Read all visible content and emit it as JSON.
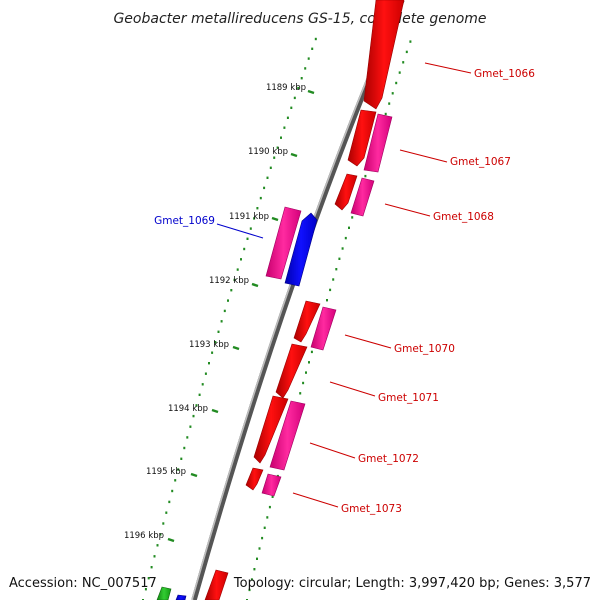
{
  "title": "Geobacter metallireducens GS-15, complete genome",
  "footer": {
    "accession": "Accession: NC_007517",
    "summary": "Topology: circular; Length: 3,997,420 bp; Genes: 3,577"
  },
  "colors": {
    "forward_cds": "#ff0000",
    "reverse_cds": "#0000ff",
    "rna": "#ff1a99",
    "trna": "#22aa22",
    "scale": "#228b22",
    "backbone": "#888888",
    "forward_label": "#cc0000",
    "reverse_label": "#0000cc"
  },
  "kbp_ticks": [
    "1189 kbp",
    "1190 kbp",
    "1191 kbp",
    "1192 kbp",
    "1193 kbp",
    "1194 kbp",
    "1195 kbp",
    "1196 kbp"
  ],
  "genes": [
    {
      "label": "Gmet_1066",
      "strand": "forward"
    },
    {
      "label": "Gmet_1067",
      "strand": "forward"
    },
    {
      "label": "Gmet_1068",
      "strand": "forward"
    },
    {
      "label": "Gmet_1069",
      "strand": "reverse"
    },
    {
      "label": "Gmet_1070",
      "strand": "forward"
    },
    {
      "label": "Gmet_1071",
      "strand": "forward"
    },
    {
      "label": "Gmet_1072",
      "strand": "forward"
    },
    {
      "label": "Gmet_1073",
      "strand": "forward"
    }
  ]
}
